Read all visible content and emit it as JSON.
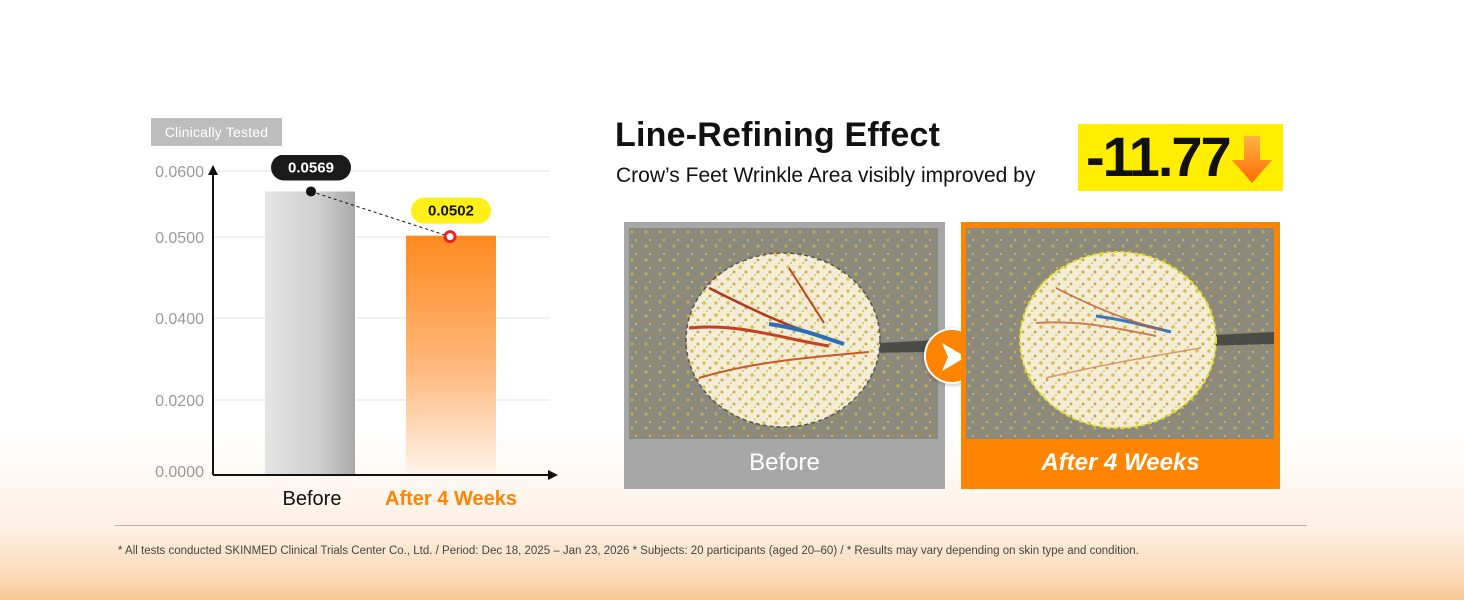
{
  "badge": "Clinically Tested",
  "headline": {
    "title": "Line-Refining Effect",
    "subtitle": "Crow’s Feet Wrinkle Area visibly improved by",
    "stat_value": "-11.77",
    "stat_icon": "down-arrow-icon",
    "stat_bg": "#ffee00"
  },
  "panels": {
    "before_label": "Before",
    "after_label": "After 4 Weeks",
    "divider_icon": "play-arrow-icon"
  },
  "footnote": "* All tests conducted SKINMED Clinical Trials Center Co., Ltd. / Period: Dec 18, 2025 – Jan 23, 2026 * Subjects: 20 participants (aged 20–60) / * Results may vary depending on skin type and condition.",
  "colors": {
    "accent": "#ff8500",
    "before_bar": "#c9c9c9",
    "highlight": "#ffee00"
  },
  "chart_data": {
    "type": "bar",
    "categories": [
      "Before",
      "After 4 Weeks"
    ],
    "values": [
      0.0569,
      0.0502
    ],
    "value_labels": [
      "0.0569",
      "0.0502"
    ],
    "y_ticks": [
      "0.0000",
      "0.0200",
      "0.0400",
      "0.0500",
      "0.0600"
    ],
    "title": "",
    "xlabel": "",
    "ylabel": "",
    "grid": true,
    "legend": "none"
  }
}
